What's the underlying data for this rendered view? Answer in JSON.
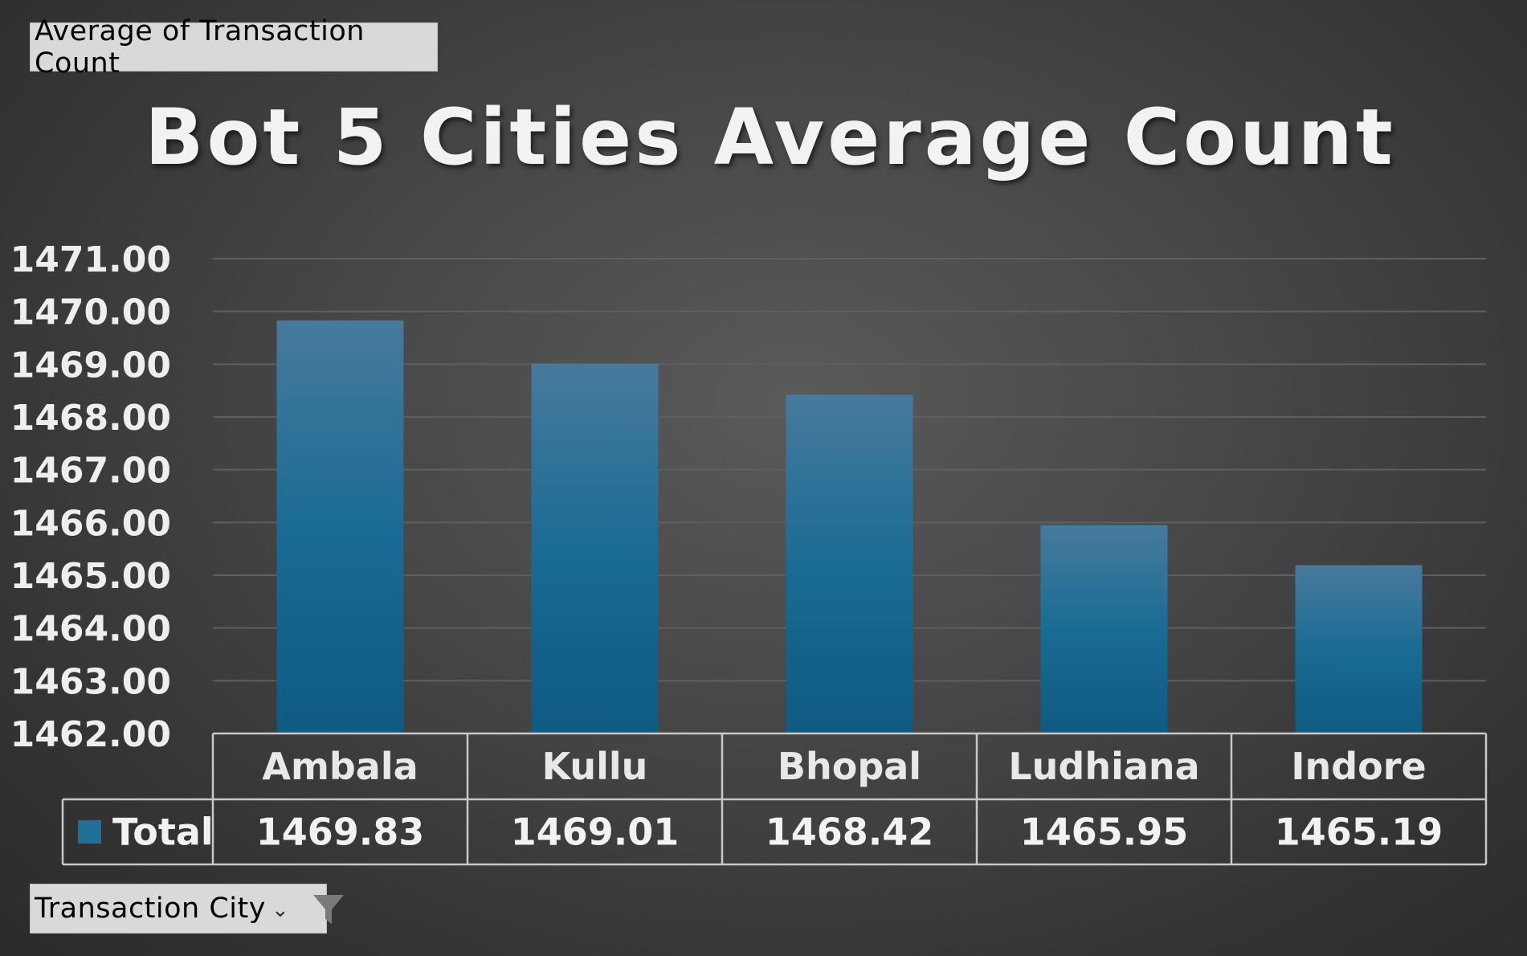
{
  "value_field": {
    "label": "Average of Transaction Count"
  },
  "axis_field": {
    "label": "Transaction City"
  },
  "colors": {
    "bar": "#1f6f98",
    "gridline": "#5f5f5f",
    "table_border": "#c8c8c8"
  },
  "chart_data": {
    "type": "bar",
    "title": "Bot 5 Cities Average Count",
    "xlabel": "",
    "ylabel": "",
    "categories": [
      "Ambala",
      "Kullu",
      "Bhopal",
      "Ludhiana",
      "Indore"
    ],
    "series": [
      {
        "name": "Total",
        "values": [
          1469.83,
          1469.01,
          1468.42,
          1465.95,
          1465.19
        ],
        "labels": [
          "1469.83",
          "1469.01",
          "1468.42",
          "1465.95",
          "1465.19"
        ]
      }
    ],
    "ylim": [
      1462,
      1471
    ],
    "yticks": [
      1471,
      1470,
      1469,
      1468,
      1467,
      1466,
      1465,
      1464,
      1463,
      1462
    ],
    "ytick_labels": [
      "1471.00",
      "1470.00",
      "1469.00",
      "1468.00",
      "1467.00",
      "1466.00",
      "1465.00",
      "1464.00",
      "1463.00",
      "1462.00"
    ],
    "grid": true,
    "data_table": true,
    "legend": "data-table-row"
  }
}
